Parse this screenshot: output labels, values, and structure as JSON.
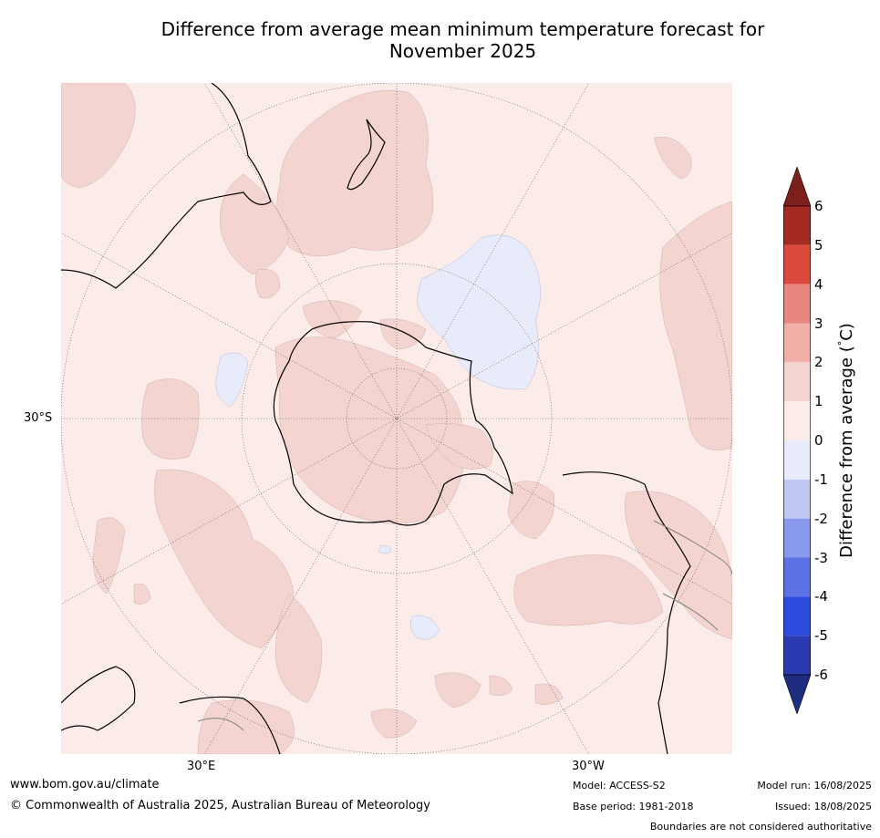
{
  "title": {
    "line1": "Difference from average mean minimum temperature forecast for",
    "line2": "November 2025"
  },
  "map": {
    "projection": "south-polar-stereographic",
    "lat_labels": [
      "30°S"
    ],
    "lon_labels": [
      "30°E",
      "30°W"
    ],
    "land_outline_color": "#000000",
    "border_color": "#808080",
    "gridline_color": "#555555"
  },
  "colorbar": {
    "label": "Difference from average (°C)",
    "label_prefix": "Difference from average (",
    "label_degree": "°",
    "label_unit": "C)",
    "ticks": [
      "6",
      "5",
      "4",
      "3",
      "2",
      "1",
      "0",
      "-1",
      "-2",
      "-3",
      "-4",
      "-5",
      "-6"
    ],
    "bins": [
      {
        "range": "5 to 6",
        "color": "#a52a22"
      },
      {
        "range": "4 to 5",
        "color": "#dc4a3e"
      },
      {
        "range": "3 to 4",
        "color": "#e8877f"
      },
      {
        "range": "2 to 3",
        "color": "#f0b0a8"
      },
      {
        "range": "1 to 2",
        "color": "#f4d4d1"
      },
      {
        "range": "0 to 1",
        "color": "#fbebe9"
      },
      {
        "range": "-1 to 0",
        "color": "#e8ecfa"
      },
      {
        "range": "-2 to -1",
        "color": "#c0c8f1"
      },
      {
        "range": "-3 to -2",
        "color": "#8898ea"
      },
      {
        "range": "-4 to -3",
        "color": "#5c72e4"
      },
      {
        "range": "-5 to -4",
        "color": "#2e4ddf"
      },
      {
        "range": "-6 to -5",
        "color": "#2a3ab0"
      }
    ],
    "over_color": "#7d1f1a",
    "under_color": "#1f2d80"
  },
  "footer": {
    "website": "www.bom.gov.au/climate",
    "copyright": "© Commonwealth of Australia 2025, Australian Bureau of Meteorology",
    "model": "Model: ACCESS-S2",
    "base_period": "Base period: 1981-2018",
    "model_run": "Model run: 16/08/2025",
    "issued": "Issued: 18/08/2025",
    "disclaimer": "Boundaries are not considered authoritative"
  }
}
